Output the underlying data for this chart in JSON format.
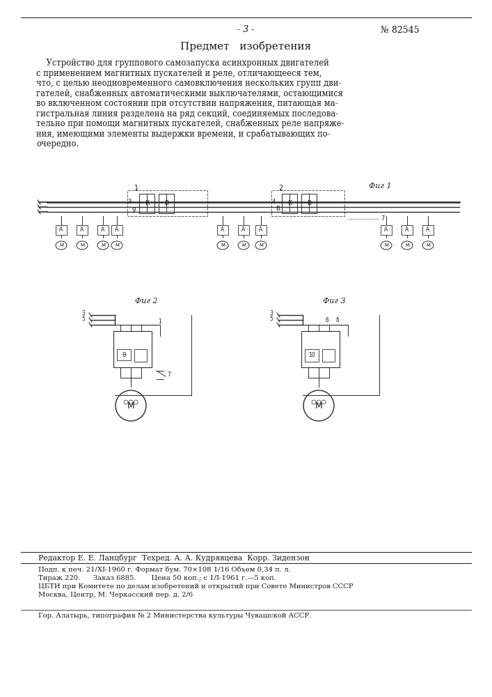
{
  "bg_color": "#ffffff",
  "page_number": "- 3 -",
  "patent_number": "№ 82545",
  "title": "Предмет   изобретения",
  "body_text": [
    "    Устройство для группового самозапуска асинхронных двигателей",
    "с применением магнитных пускателей и реле, отличающееся тем,",
    "что, с целью неодновременного самовключения нескольких групп дви-",
    "гателей, снабженных автоматическими выключателями, остающимися",
    "во включенном состоянии при отсутствии напряжения, питающая ма-",
    "гистральная линия разделена на ряд секций, соединяемых последова-",
    "тельно при помощи магнитных пускателей, снабженных реле напряже-",
    "ния, имеющими элементы выдержки времени, и срабатывающих по-",
    "очередно."
  ],
  "fig1_label": "Фиг 1",
  "fig2_label": "Фиг 2",
  "fig3_label": "Фиг 3",
  "footer_line0": "Редактор Е. Е. Ланцбург  Техред. А. А. Кудрявцева  Корр. Зидензон",
  "footer_line1": "Подп. к печ. 21/XI-1960 г. Формат бум. 70×108 1/16 Объем 0,34 п. л.",
  "footer_line2": "Тираж 220.      Заказ 6885.       Цена 50 коп.; с 1/I-1961 г.—5 коп.",
  "footer_line3": "ЦБТИ при Комитете по делам изобретений и открытий при Совете Министров СССР",
  "footer_line4": "Москва, Центр, М. Черкасский пер. д. 2/6",
  "footer_line5": "Гор. Алатырь, типография № 2 Министерства культуры Чувашской АССР.",
  "text_color": "#1a1a1a",
  "line_color": "#2a2a2a"
}
